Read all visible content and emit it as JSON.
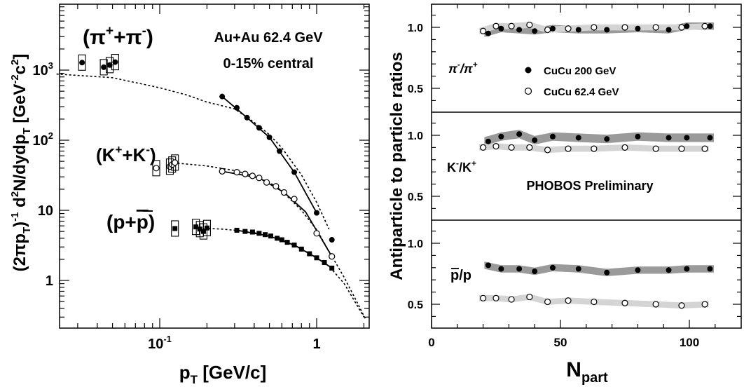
{
  "colors": {
    "ink": "#000000",
    "band_dark": "#9a9a9a",
    "band_light": "#d4d4d4",
    "open_fill": "#ffffff"
  },
  "left_panel": {
    "xlabel": "p",
    "xlabel_sub": "T",
    "xlabel_unit": " [GeV/c]",
    "ylabel": "(2πp",
    "ylabel_sub1": "T",
    "ylabel_mid": ")",
    "ylabel_sup1": "-1",
    "ylabel_mid2": " d",
    "ylabel_sup2": "2",
    "ylabel_mid3": "N/dydp",
    "ylabel_sub2": "T",
    "ylabel_mid4": " [GeV",
    "ylabel_sup3": "-2",
    "ylabel_mid5": "c",
    "ylabel_sup4": "2",
    "ylabel_end": "]",
    "label_system": "Au+Au 62.4 GeV",
    "label_centrality": "0-15% central",
    "label_pion": "(π+π)",
    "label_kaon": "(K+K)",
    "label_proton": "(p+p)",
    "xticks": {
      "labels": [
        "10",
        "1"
      ],
      "sup": "-1"
    },
    "yticks": {
      "labels": [
        "10",
        "10",
        "10",
        "1"
      ],
      "sups": [
        "3",
        "2",
        "",
        ""
      ]
    }
  },
  "right_panel": {
    "xlabel": "N",
    "xlabel_sub": "part",
    "ylabel": "Antiparticle to particle ratios",
    "xticks": [
      "0",
      "50",
      "100"
    ],
    "yticks": [
      "1.0",
      "0.5"
    ],
    "legend": {
      "filled": "CuCu 200 GeV",
      "open": "CuCu 62.4 GeV"
    },
    "watermark": "PHOBOS Preliminary",
    "labels": {
      "pion": "π",
      "kaon": "K",
      "proton": "p/p"
    }
  },
  "chart_data": [
    {
      "type": "scatter",
      "title": "",
      "xlabel": "pT [GeV/c]",
      "ylabel": "(2πpT)-1 d2N/dydpT [GeV-2c2]",
      "x_scale": "log",
      "y_scale": "log",
      "xlim": [
        0.02,
        2.3
      ],
      "ylim": [
        0.3,
        9000
      ],
      "series": [
        {
          "name": "(π++π-)",
          "marker": "filled-circle",
          "x": [
            0.25,
            0.31,
            0.36,
            0.43,
            0.5,
            0.58,
            0.72,
            1.0,
            1.25
          ],
          "y": [
            420,
            290,
            210,
            150,
            110,
            70,
            35,
            9.2,
            3.8
          ]
        },
        {
          "name": "(π++π-) low pT",
          "marker": "filled-circle-boxed",
          "x": [
            0.032,
            0.044,
            0.048,
            0.052
          ],
          "y": [
            1280,
            1100,
            1180,
            1300
          ]
        },
        {
          "name": "(K++K-)",
          "marker": "open-circle",
          "x": [
            0.25,
            0.31,
            0.35,
            0.39,
            0.43,
            0.48,
            0.55,
            0.62,
            0.72,
            1.0,
            1.25
          ],
          "y": [
            36,
            35,
            33,
            31,
            29,
            25,
            22,
            18,
            14.5,
            4.7,
            2.2
          ]
        },
        {
          "name": "(K++K-) low pT",
          "marker": "open-circle-boxed",
          "x": [
            0.095,
            0.116,
            0.12,
            0.125
          ],
          "y": [
            40,
            42,
            45,
            48
          ]
        },
        {
          "name": "(p+pbar)",
          "marker": "filled-square",
          "x": [
            0.31,
            0.35,
            0.39,
            0.43,
            0.47,
            0.51,
            0.56,
            0.6,
            0.65,
            0.72,
            0.8,
            0.9,
            1.0,
            1.12,
            1.25
          ],
          "y": [
            5.2,
            5.0,
            4.9,
            4.7,
            4.5,
            4.3,
            4.0,
            3.8,
            3.5,
            3.2,
            2.8,
            2.4,
            2.1,
            1.8,
            1.5
          ]
        },
        {
          "name": "(p+pbar) low pT",
          "marker": "filled-square-boxed",
          "x": [
            0.125,
            0.17,
            0.18,
            0.19,
            0.2
          ],
          "y": [
            5.5,
            5.8,
            5.4,
            5.0,
            5.6
          ]
        }
      ],
      "fits": [
        {
          "name": "pion fit",
          "x": [
            0.022,
            0.05,
            0.1,
            0.15,
            0.2,
            0.3,
            0.4,
            0.5,
            0.6,
            0.8,
            1.0,
            1.2
          ],
          "y": [
            880,
            780,
            560,
            440,
            350,
            280,
            180,
            120,
            78,
            32,
            13,
            5.4
          ]
        },
        {
          "name": "kaon fit",
          "x": [
            0.13,
            0.2,
            0.3,
            0.4,
            0.5,
            0.6,
            0.8,
            1.0,
            1.2,
            1.5,
            1.8,
            2.05
          ],
          "y": [
            47,
            43,
            37,
            31,
            25,
            19,
            10,
            5.3,
            2.6,
            1.1,
            0.5,
            0.28
          ]
        },
        {
          "name": "proton fit",
          "x": [
            0.17,
            0.25,
            0.3,
            0.4,
            0.5,
            0.6,
            0.8,
            1.0,
            1.2,
            1.5,
            1.8,
            2.0
          ],
          "y": [
            5.6,
            5.4,
            5.2,
            4.8,
            4.3,
            3.8,
            2.8,
            2.1,
            1.6,
            0.9,
            0.45,
            0.3
          ]
        }
      ]
    },
    {
      "type": "scatter",
      "title": "",
      "xlabel": "Npart",
      "ylabel": "Antiparticle to particle ratios",
      "xlim": [
        0,
        115
      ],
      "panels": [
        {
          "label": "π-/π+",
          "ylim": [
            0.3,
            1.2
          ],
          "series": [
            {
              "name": "CuCu 200 GeV",
              "marker": "filled-circle",
              "x": [
                22,
                27,
                34,
                40,
                47,
                57,
                68,
                80,
                92,
                99,
                108
              ],
              "y": [
                0.95,
                0.99,
                0.98,
                0.97,
                0.99,
                0.98,
                0.98,
                0.99,
                0.98,
                1.01,
                1.01
              ]
            },
            {
              "name": "CuCu 62.4 GeV",
              "marker": "open-circle",
              "x": [
                20,
                25,
                31,
                38,
                45,
                53,
                63,
                75,
                87,
                97,
                106
              ],
              "y": [
                0.97,
                1.01,
                1.01,
                1.02,
                0.98,
                0.99,
                1.0,
                1.0,
                1.0,
                1.0,
                1.01
              ]
            }
          ]
        },
        {
          "label": "K-/K+",
          "ylim": [
            0.3,
            1.2
          ],
          "series": [
            {
              "name": "CuCu 200 GeV",
              "marker": "filled-circle",
              "x": [
                22,
                27,
                34,
                40,
                47,
                57,
                68,
                80,
                92,
                99,
                108
              ],
              "y": [
                0.95,
                0.99,
                1.01,
                0.96,
                0.99,
                0.98,
                0.97,
                0.99,
                0.98,
                0.98,
                0.98
              ]
            },
            {
              "name": "CuCu 62.4 GeV",
              "marker": "open-circle",
              "x": [
                20,
                25,
                31,
                38,
                45,
                53,
                63,
                75,
                87,
                97,
                106
              ],
              "y": [
                0.9,
                0.91,
                0.9,
                0.9,
                0.88,
                0.89,
                0.89,
                0.9,
                0.89,
                0.89,
                0.89
              ]
            }
          ]
        },
        {
          "label": "p/p",
          "ylim": [
            0.3,
            1.2
          ],
          "series": [
            {
              "name": "CuCu 200 GeV",
              "marker": "filled-circle",
              "x": [
                22,
                27,
                34,
                40,
                47,
                57,
                68,
                80,
                92,
                99,
                108
              ],
              "y": [
                0.82,
                0.79,
                0.79,
                0.77,
                0.8,
                0.79,
                0.76,
                0.78,
                0.78,
                0.79,
                0.79
              ]
            },
            {
              "name": "CuCu 62.4 GeV",
              "marker": "open-circle",
              "x": [
                20,
                25,
                31,
                38,
                45,
                53,
                63,
                75,
                87,
                97,
                106
              ],
              "y": [
                0.55,
                0.55,
                0.54,
                0.56,
                0.52,
                0.53,
                0.52,
                0.51,
                0.5,
                0.49,
                0.5
              ]
            }
          ]
        }
      ]
    }
  ]
}
